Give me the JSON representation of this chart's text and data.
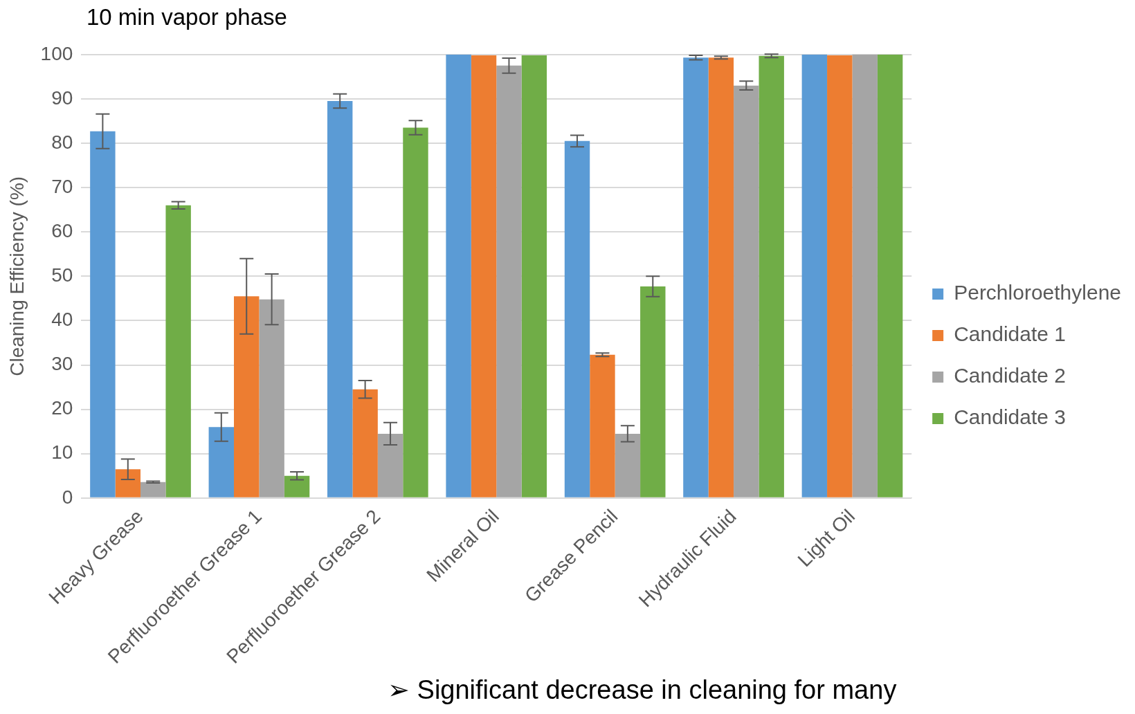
{
  "chart_data": {
    "type": "bar",
    "title": "10 min vapor phase",
    "ylabel": "Cleaning Efficiency (%)",
    "categories": [
      "Heavy Grease",
      "Perfluoroether Grease 1",
      "Perfluoroether Grease 2",
      "Mineral Oil",
      "Grease Pencil",
      "Hydraulic Fluid",
      "Light Oil"
    ],
    "series": [
      {
        "name": "Perchloroethylene",
        "color": "#5b9bd5",
        "values": [
          82.7,
          16,
          89.5,
          100,
          80.5,
          99.3,
          100
        ],
        "errors": [
          3.9,
          3.2,
          1.6,
          null,
          1.3,
          0.5,
          null
        ]
      },
      {
        "name": "Candidate 1",
        "color": "#ed7d31",
        "values": [
          6.5,
          45.5,
          24.5,
          99.8,
          32.3,
          99.3,
          99.8
        ],
        "errors": [
          2.3,
          8.5,
          2,
          null,
          0.4,
          0.3,
          null
        ]
      },
      {
        "name": "Candidate 2",
        "color": "#a5a5a5",
        "values": [
          3.6,
          44.8,
          14.5,
          97.5,
          14.5,
          93,
          100
        ],
        "errors": [
          0.2,
          5.7,
          2.5,
          1.7,
          1.8,
          1,
          null
        ]
      },
      {
        "name": "Candidate 3",
        "color": "#70ad47",
        "values": [
          66,
          5,
          83.5,
          99.8,
          47.7,
          99.7,
          100
        ],
        "errors": [
          0.8,
          0.9,
          1.6,
          null,
          2.3,
          0.4,
          null
        ]
      }
    ],
    "ylim": [
      0,
      100
    ],
    "yticks": [
      0,
      10,
      20,
      30,
      40,
      50,
      60,
      70,
      80,
      90,
      100
    ],
    "grid": "y",
    "legend": "right",
    "annotations": [
      "➢ Significant decrease in cleaning for many"
    ]
  }
}
